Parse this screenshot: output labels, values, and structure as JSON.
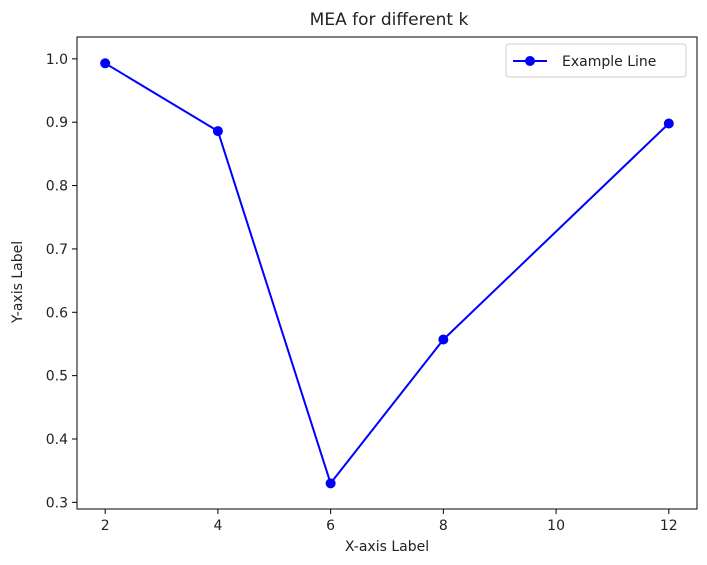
{
  "chart_data": {
    "type": "line",
    "title": "MEA for different k",
    "xlabel": "X-axis Label",
    "ylabel": "Y-axis Label",
    "x": [
      2,
      4,
      6,
      8,
      12
    ],
    "series": [
      {
        "name": "Example Line",
        "values": [
          0.993,
          0.886,
          0.33,
          0.557,
          0.898
        ],
        "color": "#0000ff",
        "marker": "circle"
      }
    ],
    "xlim": [
      1.5,
      12.5
    ],
    "ylim": [
      0.2895,
      1.0345
    ],
    "xticks": [
      2,
      4,
      6,
      8,
      10,
      12
    ],
    "xtick_labels": [
      "2",
      "4",
      "6",
      "8",
      "10",
      "12"
    ],
    "yticks": [
      0.3,
      0.4,
      0.5,
      0.6,
      0.7,
      0.8,
      0.9,
      1.0
    ],
    "ytick_labels": [
      "0.3",
      "0.4",
      "0.5",
      "0.6",
      "0.7",
      "0.8",
      "0.9",
      "1.0"
    ],
    "grid": false,
    "legend": "upper-right"
  }
}
